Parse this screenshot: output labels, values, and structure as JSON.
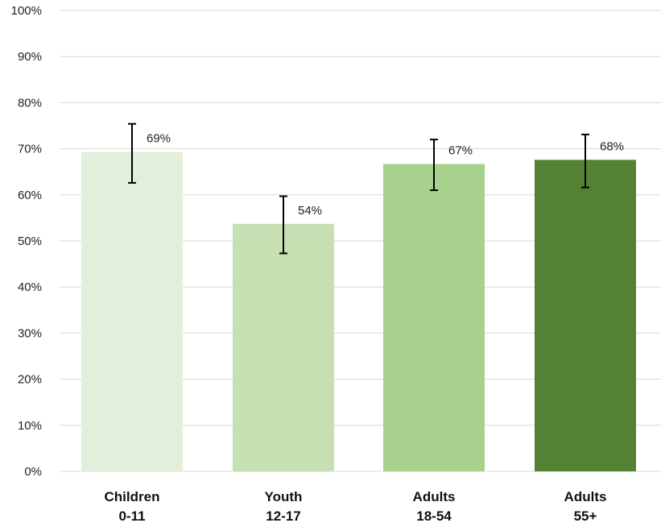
{
  "chart_data": {
    "type": "bar",
    "categories": [
      [
        "Children",
        "0-11"
      ],
      [
        "Youth",
        "12-17"
      ],
      [
        "Adults",
        "18-54"
      ],
      [
        "Adults",
        "55+"
      ]
    ],
    "values": [
      69.3,
      53.7,
      66.7,
      67.6
    ],
    "data_labels": [
      "69%",
      "54%",
      "67%",
      "68%"
    ],
    "error_low": [
      62.6,
      47.3,
      61.0,
      61.6
    ],
    "error_high": [
      75.4,
      59.7,
      72.0,
      73.1
    ],
    "colors": [
      "#e2efda",
      "#c6e0b4",
      "#a9d18e",
      "#548235"
    ],
    "ylim": [
      0,
      100
    ],
    "yticks": [
      0,
      10,
      20,
      30,
      40,
      50,
      60,
      70,
      80,
      90,
      100
    ],
    "ytick_labels": [
      "0%",
      "10%",
      "20%",
      "30%",
      "40%",
      "50%",
      "60%",
      "70%",
      "80%",
      "90%",
      "100%"
    ],
    "grid": true,
    "title": "",
    "xlabel": "",
    "ylabel": ""
  }
}
